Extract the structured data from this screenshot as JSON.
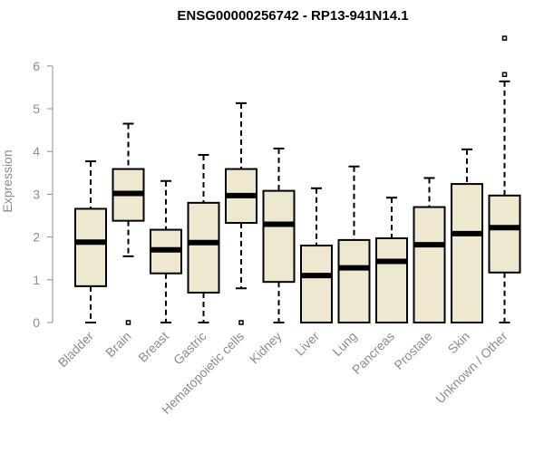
{
  "chart_data": {
    "type": "box",
    "title": "ENSG00000256742 - RP13-941N14.1",
    "ylabel": "Expression",
    "xlabel": "",
    "ylim": [
      0,
      6.8
    ],
    "yticks": [
      "0",
      "1",
      "2",
      "3",
      "4",
      "5",
      "6"
    ],
    "grid": false,
    "box_fill": "#efe8d0",
    "box_stroke": "#000000",
    "label_color": "#8c8c8c",
    "categories": [
      "Bladder",
      "Brain",
      "Breast",
      "Gastric",
      "Hematopoietic cells",
      "Kidney",
      "Liver",
      "Lung",
      "Pancreas",
      "Prostate",
      "Skin",
      "Unknown / Other"
    ],
    "series": [
      {
        "whisker_low": 0.0,
        "q1": 0.85,
        "median": 1.88,
        "q3": 2.66,
        "whisker_high": 3.77,
        "outliers": []
      },
      {
        "whisker_low": 1.55,
        "q1": 2.38,
        "median": 3.02,
        "q3": 3.59,
        "whisker_high": 4.65,
        "outliers": [
          0.0
        ]
      },
      {
        "whisker_low": 0.0,
        "q1": 1.15,
        "median": 1.7,
        "q3": 2.17,
        "whisker_high": 3.31,
        "outliers": []
      },
      {
        "whisker_low": 0.0,
        "q1": 0.7,
        "median": 1.87,
        "q3": 2.8,
        "whisker_high": 3.92,
        "outliers": []
      },
      {
        "whisker_low": 0.8,
        "q1": 2.33,
        "median": 2.97,
        "q3": 3.59,
        "whisker_high": 5.13,
        "outliers": [
          0.0
        ]
      },
      {
        "whisker_low": 0.0,
        "q1": 0.95,
        "median": 2.3,
        "q3": 3.08,
        "whisker_high": 4.07,
        "outliers": []
      },
      {
        "whisker_low": 0.0,
        "q1": 0.0,
        "median": 1.1,
        "q3": 1.8,
        "whisker_high": 3.14,
        "outliers": []
      },
      {
        "whisker_low": 0.0,
        "q1": 0.0,
        "median": 1.28,
        "q3": 1.93,
        "whisker_high": 3.65,
        "outliers": []
      },
      {
        "whisker_low": 0.0,
        "q1": 0.0,
        "median": 1.43,
        "q3": 1.97,
        "whisker_high": 2.92,
        "outliers": []
      },
      {
        "whisker_low": 0.0,
        "q1": 0.0,
        "median": 1.82,
        "q3": 2.7,
        "whisker_high": 3.38,
        "outliers": []
      },
      {
        "whisker_low": 0.0,
        "q1": 0.0,
        "median": 2.08,
        "q3": 3.24,
        "whisker_high": 4.05,
        "outliers": []
      },
      {
        "whisker_low": 0.0,
        "q1": 1.17,
        "median": 2.22,
        "q3": 2.97,
        "whisker_high": 5.64,
        "outliers": [
          5.8,
          6.65
        ]
      }
    ]
  }
}
